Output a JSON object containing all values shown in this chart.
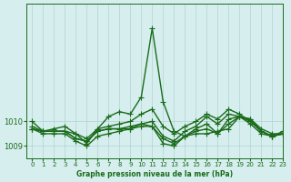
{
  "title": "Graphe pression niveau de la mer (hPa)",
  "bg_color": "#d6eeee",
  "grid_color": "#b0d4d4",
  "line_color": "#1a6b1a",
  "text_color": "#1a6b1a",
  "xlim": [
    -0.5,
    23
  ],
  "ylim": [
    1008.5,
    1014.8
  ],
  "yticks": [
    1009,
    1010
  ],
  "xticks": [
    0,
    1,
    2,
    3,
    4,
    5,
    6,
    7,
    8,
    9,
    10,
    11,
    12,
    13,
    14,
    15,
    16,
    17,
    18,
    19,
    20,
    21,
    22,
    23
  ],
  "series": [
    [
      1010.0,
      1009.6,
      1009.7,
      1009.8,
      1009.5,
      1009.1,
      1009.7,
      1010.2,
      1010.4,
      1010.3,
      1011.0,
      1013.8,
      1010.8,
      1009.6,
      1009.4,
      1009.5,
      1009.5,
      1009.6,
      1009.7,
      1010.2,
      1010.1,
      1009.6,
      1009.4,
      1009.5
    ],
    [
      1009.7,
      1009.6,
      1009.6,
      1009.6,
      1009.3,
      1009.2,
      1009.6,
      1009.7,
      1009.7,
      1009.7,
      1009.8,
      1009.8,
      1009.3,
      1009.1,
      1009.4,
      1009.6,
      1009.7,
      1009.5,
      1009.9,
      1010.2,
      1010.1,
      1009.7,
      1009.5,
      1009.5
    ],
    [
      1009.7,
      1009.6,
      1009.6,
      1009.6,
      1009.3,
      1009.2,
      1009.6,
      1009.7,
      1009.7,
      1009.8,
      1009.9,
      1010.0,
      1009.4,
      1009.2,
      1009.6,
      1009.8,
      1010.2,
      1009.9,
      1010.3,
      1010.2,
      1010.0,
      1009.6,
      1009.4,
      1009.5
    ],
    [
      1009.7,
      1009.5,
      1009.5,
      1009.5,
      1009.2,
      1009.0,
      1009.4,
      1009.5,
      1009.6,
      1009.7,
      1009.9,
      1009.8,
      1009.1,
      1009.0,
      1009.4,
      1009.7,
      1009.9,
      1009.5,
      1010.1,
      1010.2,
      1009.9,
      1009.5,
      1009.4,
      1009.5
    ],
    [
      1009.8,
      1009.6,
      1009.6,
      1009.6,
      1009.5,
      1009.3,
      1009.7,
      1009.8,
      1009.9,
      1010.0,
      1010.3,
      1010.5,
      1009.8,
      1009.5,
      1009.8,
      1010.0,
      1010.3,
      1010.1,
      1010.5,
      1010.3,
      1010.0,
      1009.6,
      1009.4,
      1009.6
    ]
  ],
  "marker": "+",
  "markersize": 4,
  "linewidth": 1.0
}
